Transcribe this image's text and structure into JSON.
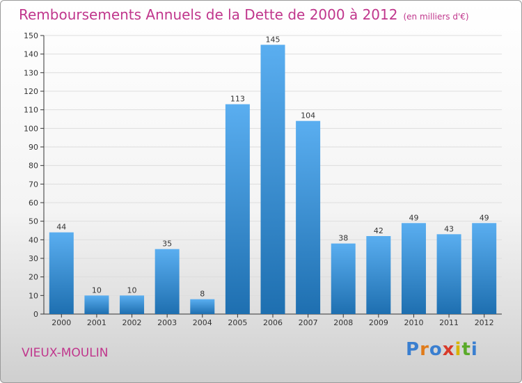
{
  "header": {
    "title": "Remboursements Annuels de la Dette de 2000 à 2012",
    "unit": "(en milliers d'€)"
  },
  "footer": {
    "commune": "VIEUX-MOULIN",
    "logo_letters": [
      "P",
      "r",
      "o",
      "x",
      "i",
      "t",
      "i"
    ],
    "logo_colors": [
      "#3a7fd0",
      "#e07b1a",
      "#3a7fd0",
      "#d83a2a",
      "#d8b400",
      "#5aaa2a",
      "#3a7fd0"
    ]
  },
  "colors": {
    "title": "#c0368c",
    "bar_light": "#5aaef0",
    "bar_dark": "#1e6fb0",
    "grid": "#dddddd"
  },
  "chart_data": {
    "type": "bar",
    "title": "Remboursements Annuels de la Dette de 2000 à 2012",
    "categories": [
      "2000",
      "2001",
      "2002",
      "2003",
      "2004",
      "2005",
      "2006",
      "2007",
      "2008",
      "2009",
      "2010",
      "2011",
      "2012"
    ],
    "values": [
      44,
      10,
      10,
      35,
      8,
      113,
      145,
      104,
      38,
      42,
      49,
      43,
      49
    ],
    "ylim": [
      0,
      150
    ],
    "yticks": [
      0,
      10,
      20,
      30,
      40,
      50,
      60,
      70,
      80,
      90,
      100,
      110,
      120,
      130,
      140,
      150
    ],
    "grid": true,
    "data_labels": true
  }
}
